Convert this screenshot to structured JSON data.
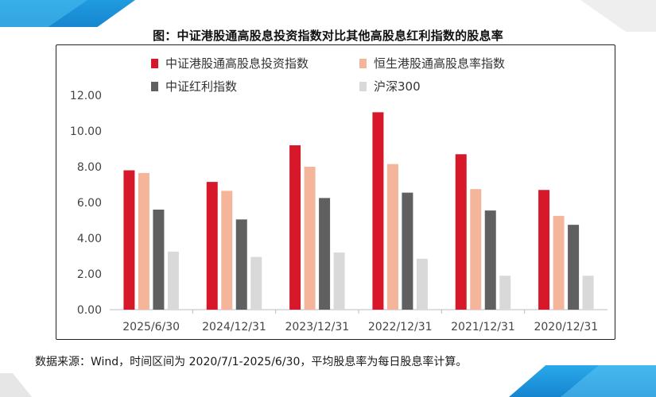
{
  "title": "图：中证港股通高股息投资指数对比其他高股息红利指数的股息率",
  "source": "数据来源：Wind，时间区间为 2020/7/1-2025/6/30，平均股息率为每日股息率计算。",
  "chart_data": {
    "type": "bar",
    "title": "图：中证港股通高股息投资指数对比其他高股息红利指数的股息率",
    "xlabel": "",
    "ylabel": "",
    "ylim": [
      0,
      12
    ],
    "yticks": [
      "0.00",
      "2.00",
      "4.00",
      "6.00",
      "8.00",
      "10.00",
      "12.00"
    ],
    "grid": false,
    "legend_position": "top",
    "categories": [
      "2025/6/30",
      "2024/12/31",
      "2023/12/31",
      "2022/12/31",
      "2021/12/31",
      "2020/12/31"
    ],
    "series": [
      {
        "name": "中证港股通高股息投资指数",
        "color": "#d7182a",
        "values": [
          7.8,
          7.15,
          9.2,
          11.05,
          8.7,
          6.7
        ]
      },
      {
        "name": "恒生港股通高股息率指数",
        "color": "#f4b59b",
        "values": [
          7.65,
          6.65,
          8.0,
          8.15,
          6.75,
          5.25
        ]
      },
      {
        "name": "中证红利指数",
        "color": "#606060",
        "values": [
          5.6,
          5.05,
          6.25,
          6.55,
          5.55,
          4.75
        ]
      },
      {
        "name": "沪深300",
        "color": "#d9d9d9",
        "values": [
          3.25,
          2.95,
          3.2,
          2.85,
          1.9,
          1.9
        ]
      }
    ]
  }
}
